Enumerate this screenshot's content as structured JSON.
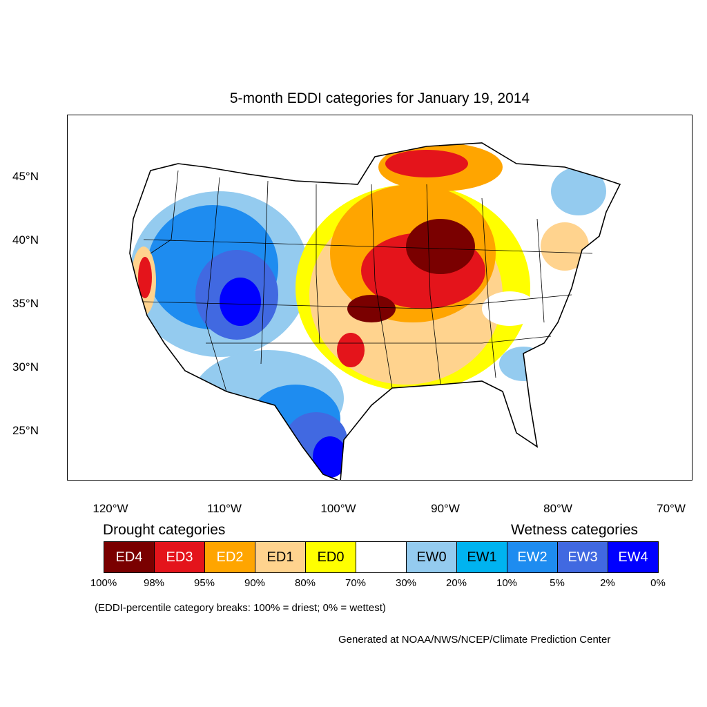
{
  "title": "5-month EDDI categories for January 19, 2014",
  "lat_labels": [
    "45°N",
    "40°N",
    "35°N",
    "30°N",
    "25°N"
  ],
  "lon_labels": [
    "120°W",
    "110°W",
    "100°W",
    "90°W",
    "80°W",
    "70°W"
  ],
  "legend": {
    "drought_title": "Drought categories",
    "wetness_title": "Wetness categories",
    "categories": [
      {
        "label": "ED4",
        "color": "#7a0000",
        "text_color": "#ffffff"
      },
      {
        "label": "ED3",
        "color": "#e4141b",
        "text_color": "#ffffff"
      },
      {
        "label": "ED2",
        "color": "#ffa500",
        "text_color": "#ffffff"
      },
      {
        "label": "ED1",
        "color": "#ffd38e",
        "text_color": "#000000"
      },
      {
        "label": "ED0",
        "color": "#ffff00",
        "text_color": "#000000"
      },
      {
        "label": "",
        "color": "#ffffff",
        "text_color": "#000000"
      },
      {
        "label": "EW0",
        "color": "#94cbef",
        "text_color": "#000000"
      },
      {
        "label": "EW1",
        "color": "#00b3f0",
        "text_color": "#000000"
      },
      {
        "label": "EW2",
        "color": "#1e8cf0",
        "text_color": "#ffffff"
      },
      {
        "label": "EW3",
        "color": "#4169e1",
        "text_color": "#ffffff"
      },
      {
        "label": "EW4",
        "color": "#0000ff",
        "text_color": "#ffffff"
      }
    ],
    "breaks": [
      "100%",
      "98%",
      "95%",
      "90%",
      "80%",
      "70%",
      "30%",
      "20%",
      "10%",
      "5%",
      "2%",
      "0%"
    ]
  },
  "note": "(EDDI-percentile category breaks: 100% = driest; 0% = wettest)",
  "credit": "Generated at NOAA/NWS/NCEP/Climate Prediction Center"
}
